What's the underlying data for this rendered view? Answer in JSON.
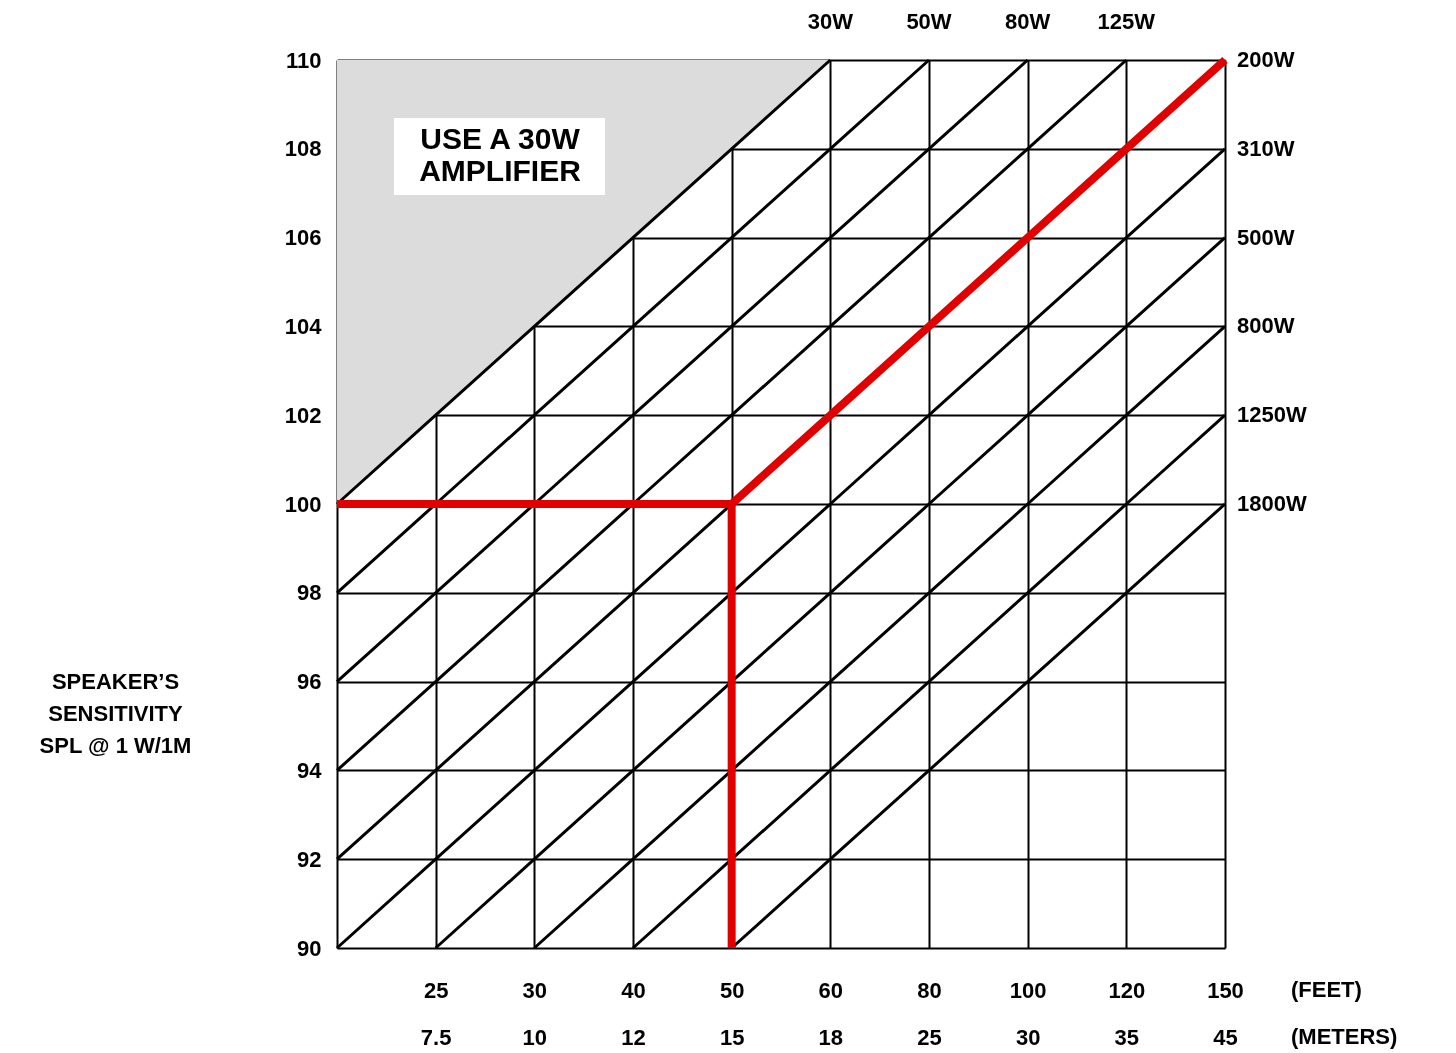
{
  "chart_data": {
    "type": "line",
    "ylabel": "SPEAKER’S\nSENSITIVITY\nSPL @ 1 W/1M",
    "xlabel": "(FEET)\n(METERS)",
    "categories": [
      null,
      "25\n7.5",
      "30\n10",
      "40\n12",
      "50\n15",
      "60\n18",
      "80\n25",
      "100\n30",
      "120\n35",
      "150\n45"
    ],
    "ylim": [
      90,
      110
    ],
    "yticks": [
      90,
      92,
      94,
      96,
      98,
      100,
      102,
      104,
      106,
      108,
      110
    ],
    "grid": true,
    "series": [
      {
        "name": "30W",
        "color": "#000000",
        "values": [
          100,
          102,
          104,
          106,
          108,
          110,
          null,
          null,
          null,
          null
        ],
        "lower": [
          100,
          102,
          104,
          106,
          108,
          110,
          null,
          null,
          null,
          null
        ],
        "upper": [
          110,
          110,
          110,
          110,
          110,
          110,
          null,
          null,
          null,
          null
        ]
      },
      {
        "name": "50W",
        "color": "#000000",
        "values": [
          98,
          100,
          102,
          104,
          106,
          108,
          110,
          null,
          null,
          null
        ]
      },
      {
        "name": "80W",
        "color": "#000000",
        "values": [
          96,
          98,
          100,
          102,
          104,
          106,
          108,
          110,
          null,
          null
        ]
      },
      {
        "name": "125W",
        "color": "#000000",
        "values": [
          94,
          96,
          98,
          100,
          102,
          104,
          106,
          108,
          110,
          null
        ]
      },
      {
        "color": "#000000",
        "values": [
          92,
          94,
          96,
          98,
          100,
          null,
          null,
          null,
          null,
          null
        ]
      },
      {
        "name": "310W",
        "color": "#000000",
        "values": [
          90,
          92,
          94,
          96,
          98,
          100,
          102,
          104,
          106,
          108
        ]
      },
      {
        "name": "500W",
        "color": "#000000",
        "values": [
          null,
          90,
          92,
          94,
          96,
          98,
          100,
          102,
          104,
          106
        ]
      },
      {
        "name": "800W",
        "color": "#000000",
        "values": [
          null,
          null,
          90,
          92,
          94,
          96,
          98,
          100,
          102,
          104
        ]
      },
      {
        "name": "1250W",
        "color": "#000000",
        "values": [
          null,
          null,
          null,
          90,
          92,
          94,
          96,
          98,
          100,
          102
        ]
      },
      {
        "name": "1800W",
        "color": "#000000",
        "values": [
          null,
          null,
          null,
          null,
          90,
          92,
          94,
          96,
          98,
          100
        ]
      },
      {
        "name": "200W",
        "color": "#e00000",
        "values": [
          null,
          null,
          null,
          null,
          100,
          102,
          104,
          106,
          108,
          110
        ]
      },
      {
        "color": "#e00000",
        "values": [
          100,
          100,
          100,
          100,
          100,
          null,
          null,
          null,
          null,
          null
        ]
      },
      {
        "color": "#e00000",
        "x": [
          "50\n15",
          "50\n15"
        ],
        "values": [
          100,
          90
        ]
      }
    ],
    "annotations": [
      "USE A 30W\nAMPLIFIER"
    ]
  }
}
